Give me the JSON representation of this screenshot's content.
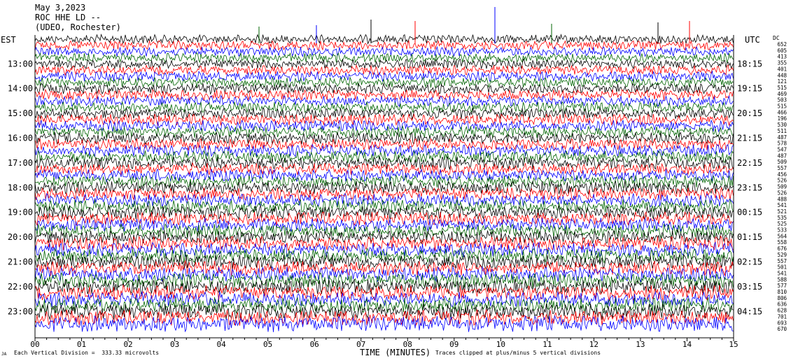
{
  "header": {
    "line1": "May 3,2023",
    "line2": "ROC HHE LD --",
    "line3": "(UDEO, Rochester)"
  },
  "left_axis_title": "EST",
  "right_axis_title": "UTC",
  "dc_title": "DC",
  "footer": {
    "scale_note": "Each Vertical Division =  333.33 microvolts",
    "xlabel": "TIME (MINUTES)",
    "clip_note": "Traces clipped at plus/minus 5 vertical divisions",
    "corner_mark": "JA"
  },
  "chart_data": {
    "type": "line",
    "title": "May 3,2023 ROC HHE LD -- (UDEO, Rochester)",
    "xlabel": "TIME (MINUTES)",
    "xlim": [
      0,
      15
    ],
    "x_ticks": [
      "00",
      "01",
      "02",
      "03",
      "04",
      "05",
      "06",
      "07",
      "08",
      "09",
      "10",
      "11",
      "12",
      "13",
      "14",
      "15"
    ],
    "left_ticks": [
      "13:00",
      "14:00",
      "15:00",
      "16:00",
      "17:00",
      "18:00",
      "19:00",
      "20:00",
      "21:00",
      "22:00",
      "23:00"
    ],
    "right_ticks": [
      "18:15",
      "19:15",
      "20:15",
      "21:15",
      "22:15",
      "23:15",
      "00:15",
      "01:15",
      "02:15",
      "03:15",
      "04:15"
    ],
    "trace_colors": [
      "#000000",
      "#ff0000",
      "#0000ff",
      "#006400"
    ],
    "trace_count": 47,
    "dc_offsets": [
      652,
      605,
      413,
      355,
      401,
      448,
      121,
      515,
      469,
      503,
      515,
      466,
      196,
      530,
      511,
      487,
      578,
      547,
      487,
      509,
      557,
      456,
      526,
      509,
      526,
      488,
      541,
      521,
      535,
      525,
      533,
      564,
      558,
      676,
      529,
      557,
      501,
      541,
      588,
      577,
      810,
      806,
      636,
      628,
      701,
      693,
      670
    ],
    "grid": false,
    "legend": "none"
  }
}
